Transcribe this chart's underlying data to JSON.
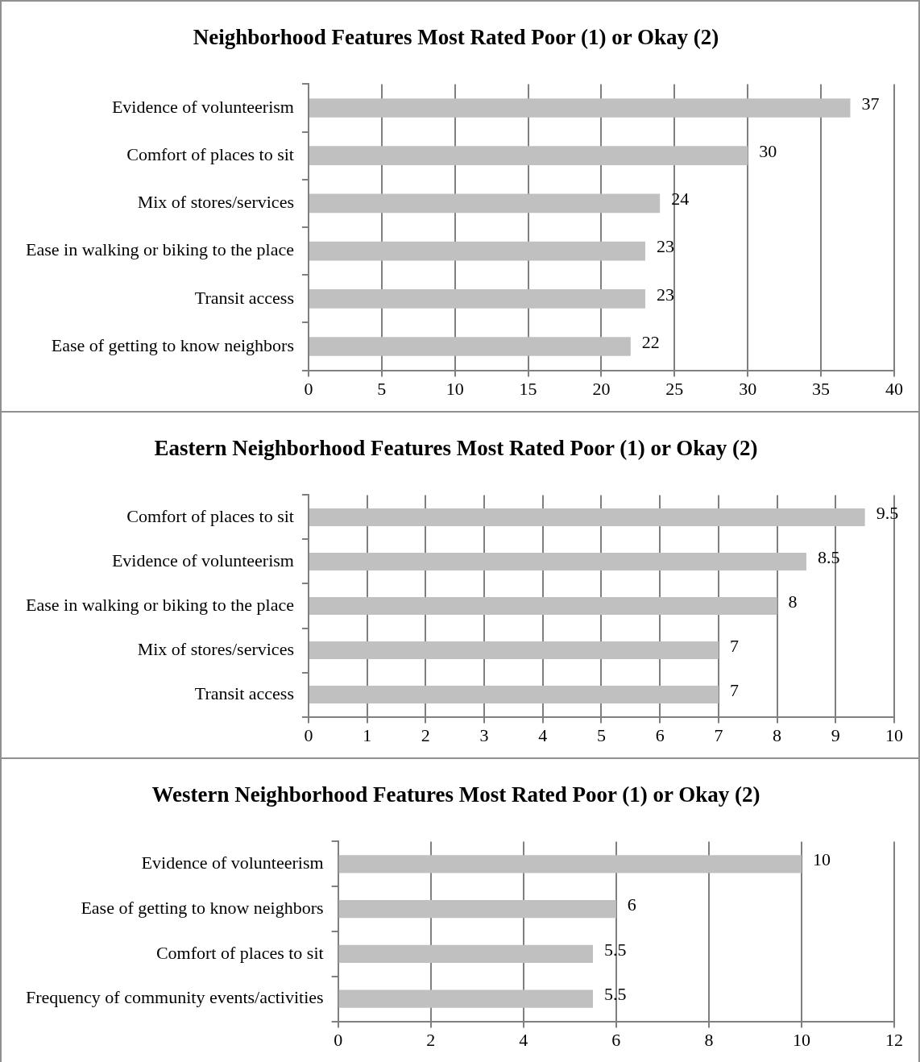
{
  "chart_data": [
    {
      "type": "bar",
      "orientation": "horizontal",
      "title": "Neighborhood Features Most Rated Poor (1) or Okay (2)",
      "categories": [
        "Evidence of volunteerism",
        "Comfort of places to sit",
        "Mix of stores/services",
        "Ease in walking or biking to the place",
        "Transit access",
        "Ease of getting to know neighbors"
      ],
      "values": [
        37,
        30,
        24,
        23,
        23,
        22
      ],
      "color": "#c0c0c0",
      "xlim": [
        0,
        40
      ],
      "xticks": [
        0,
        5,
        10,
        15,
        20,
        25,
        30,
        35,
        40
      ],
      "grid": "x",
      "data_labels": true
    },
    {
      "type": "bar",
      "orientation": "horizontal",
      "title": "Eastern Neighborhood Features Most Rated Poor (1) or Okay (2)",
      "categories": [
        "Comfort of places to sit",
        "Evidence of volunteerism",
        "Ease in walking or biking to the place",
        "Mix of stores/services",
        "Transit access"
      ],
      "values": [
        9.5,
        8.5,
        8,
        7,
        7
      ],
      "color": "#c0c0c0",
      "xlim": [
        0,
        10
      ],
      "xticks": [
        0,
        1,
        2,
        3,
        4,
        5,
        6,
        7,
        8,
        9,
        10
      ],
      "grid": "x",
      "data_labels": true
    },
    {
      "type": "bar",
      "orientation": "horizontal",
      "title": "Western Neighborhood Features Most Rated Poor (1) or Okay (2)",
      "categories": [
        "Evidence of volunteerism",
        "Ease of getting to know neighbors",
        "Comfort of places to sit",
        "Frequency of community events/activities"
      ],
      "values": [
        10,
        6,
        5.5,
        5.5
      ],
      "color": "#c0c0c0",
      "xlim": [
        0,
        12
      ],
      "xticks": [
        0,
        2,
        4,
        6,
        8,
        10,
        12
      ],
      "grid": "x",
      "data_labels": true
    }
  ]
}
